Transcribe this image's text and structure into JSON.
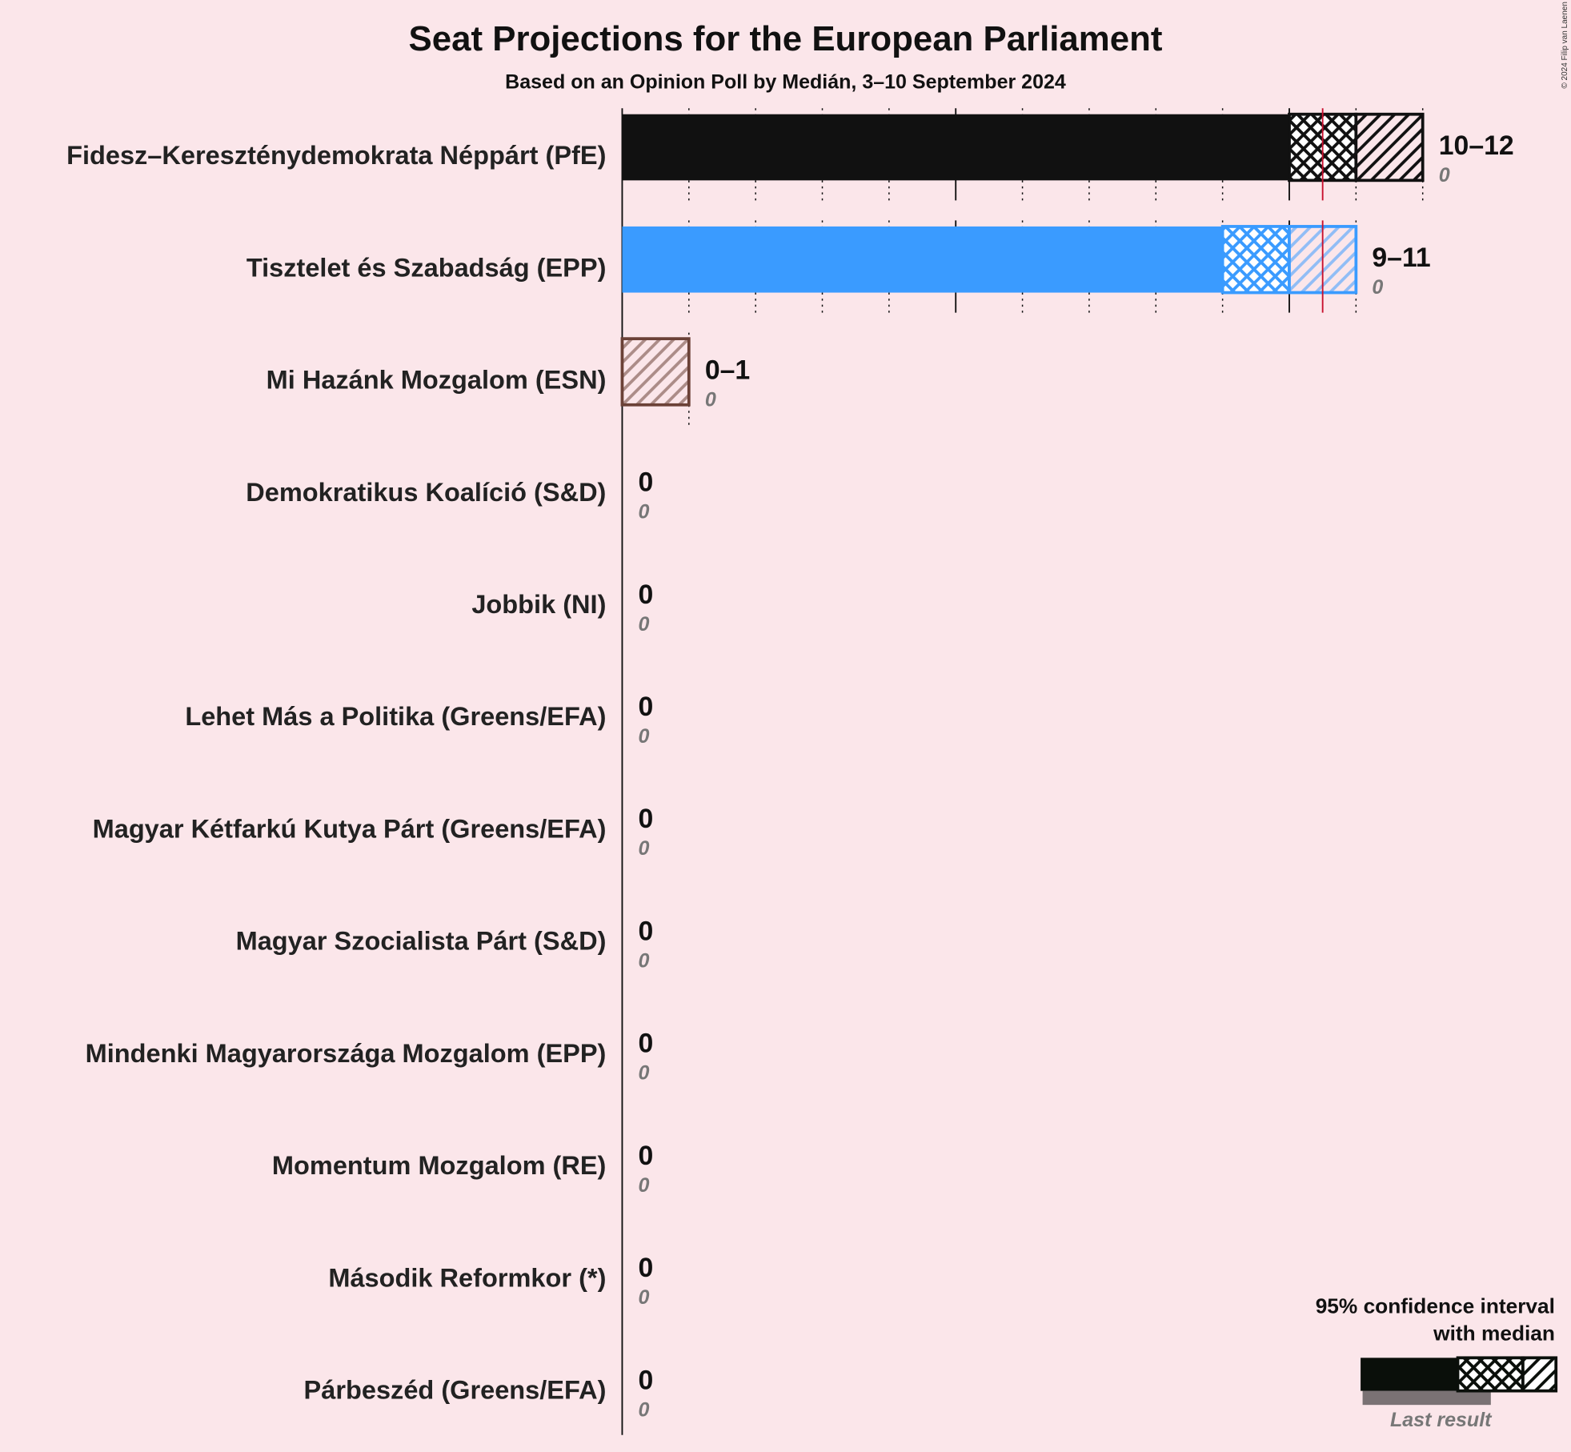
{
  "chart_data": {
    "type": "range_bar",
    "title": "Seat Projections for the European Parliament",
    "subtitle": "Based on an Opinion Poll by Medián, 3–10 September 2024",
    "copyright": "© 2024 Filip van Laenen",
    "xlim": [
      0,
      12
    ],
    "xticks": [
      0,
      1,
      2,
      3,
      4,
      5,
      6,
      7,
      8,
      9,
      10,
      11,
      12
    ],
    "threshold": 10.5,
    "threshold_color": "#c8102e",
    "legend": {
      "title": [
        "95% confidence interval",
        "with median"
      ],
      "last_result": "Last result"
    },
    "parties": [
      {
        "name": "Fidesz–Kereszténydemokrata Néppárt (PfE)",
        "low": 10,
        "median": 11,
        "high": 12,
        "last": 0,
        "value_label": "10–12",
        "color": "#111111"
      },
      {
        "name": "Tisztelet és Szabadság (EPP)",
        "low": 9,
        "median": 10,
        "high": 11,
        "last": 0,
        "value_label": "9–11",
        "color": "#3a9bff"
      },
      {
        "name": "Mi Hazánk Mozgalom (ESN)",
        "low": 0,
        "median": 0,
        "high": 1,
        "last": 0,
        "value_label": "0–1",
        "color": "#6b4137"
      },
      {
        "name": "Demokratikus Koalíció (S&D)",
        "low": 0,
        "median": 0,
        "high": 0,
        "last": 0
      },
      {
        "name": "Jobbik (NI)",
        "low": 0,
        "median": 0,
        "high": 0,
        "last": 0
      },
      {
        "name": "Lehet Más a Politika (Greens/EFA)",
        "low": 0,
        "median": 0,
        "high": 0,
        "last": 0
      },
      {
        "name": "Magyar Kétfarkú Kutya Párt (Greens/EFA)",
        "low": 0,
        "median": 0,
        "high": 0,
        "last": 0
      },
      {
        "name": "Magyar Szocialista Párt (S&D)",
        "low": 0,
        "median": 0,
        "high": 0,
        "last": 0
      },
      {
        "name": "Mindenki Magyarországa Mozgalom (EPP)",
        "low": 0,
        "median": 0,
        "high": 0,
        "last": 0
      },
      {
        "name": "Momentum Mozgalom (RE)",
        "low": 0,
        "median": 0,
        "high": 0,
        "last": 0
      },
      {
        "name": "Második Reformkor (*)",
        "low": 0,
        "median": 0,
        "high": 0,
        "last": 0
      },
      {
        "name": "Párbeszéd (Greens/EFA)",
        "low": 0,
        "median": 0,
        "high": 0,
        "last": 0
      }
    ]
  }
}
